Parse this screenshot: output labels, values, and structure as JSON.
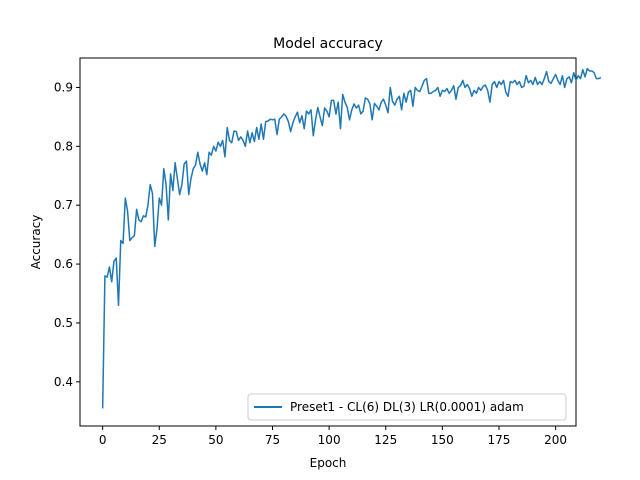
{
  "chart_data": {
    "type": "line",
    "title": "Model accuracy",
    "xlabel": "Epoch",
    "ylabel": "Accuracy",
    "xlim": [
      -10,
      209
    ],
    "ylim": [
      0.325,
      0.95
    ],
    "xticks": [
      0,
      25,
      50,
      75,
      100,
      125,
      150,
      175,
      200
    ],
    "yticks": [
      0.4,
      0.5,
      0.6,
      0.7,
      0.8,
      0.9
    ],
    "ytick_labels": [
      "0.4",
      "0.5",
      "0.6",
      "0.7",
      "0.8",
      "0.9"
    ],
    "grid": false,
    "legend_position": "lower-right",
    "series": [
      {
        "name": "Preset1 - CL(6) DL(3) LR(0.0001) adam",
        "color": "#1f77b4",
        "values": [
          0.355,
          0.58,
          0.578,
          0.595,
          0.57,
          0.605,
          0.61,
          0.53,
          0.64,
          0.635,
          0.712,
          0.69,
          0.64,
          0.645,
          0.648,
          0.693,
          0.675,
          0.672,
          0.682,
          0.68,
          0.7,
          0.735,
          0.72,
          0.63,
          0.66,
          0.712,
          0.7,
          0.762,
          0.735,
          0.675,
          0.753,
          0.725,
          0.772,
          0.745,
          0.718,
          0.735,
          0.77,
          0.775,
          0.718,
          0.745,
          0.762,
          0.768,
          0.79,
          0.77,
          0.758,
          0.772,
          0.752,
          0.79,
          0.785,
          0.8,
          0.792,
          0.807,
          0.8,
          0.81,
          0.782,
          0.832,
          0.81,
          0.806,
          0.826,
          0.825,
          0.81,
          0.816,
          0.81,
          0.8,
          0.826,
          0.806,
          0.823,
          0.808,
          0.832,
          0.812,
          0.838,
          0.812,
          0.842,
          0.843,
          0.846,
          0.845,
          0.846,
          0.82,
          0.846,
          0.85,
          0.855,
          0.851,
          0.842,
          0.825,
          0.84,
          0.85,
          0.858,
          0.84,
          0.852,
          0.83,
          0.86,
          0.855,
          0.862,
          0.818,
          0.845,
          0.866,
          0.85,
          0.835,
          0.865,
          0.86,
          0.85,
          0.878,
          0.878,
          0.855,
          0.875,
          0.83,
          0.888,
          0.875,
          0.866,
          0.845,
          0.862,
          0.872,
          0.865,
          0.87,
          0.855,
          0.86,
          0.882,
          0.88,
          0.872,
          0.845,
          0.873,
          0.868,
          0.862,
          0.875,
          0.88,
          0.87,
          0.857,
          0.9,
          0.876,
          0.87,
          0.88,
          0.885,
          0.862,
          0.89,
          0.875,
          0.892,
          0.895,
          0.868,
          0.9,
          0.895,
          0.893,
          0.902,
          0.912,
          0.915,
          0.89,
          0.89,
          0.893,
          0.895,
          0.9,
          0.885,
          0.895,
          0.893,
          0.898,
          0.89,
          0.895,
          0.903,
          0.88,
          0.9,
          0.903,
          0.912,
          0.9,
          0.905,
          0.898,
          0.885,
          0.895,
          0.89,
          0.9,
          0.895,
          0.902,
          0.904,
          0.895,
          0.875,
          0.905,
          0.91,
          0.9,
          0.91,
          0.905,
          0.912,
          0.892,
          0.885,
          0.91,
          0.908,
          0.912,
          0.905,
          0.91,
          0.9,
          0.902,
          0.92,
          0.908,
          0.912,
          0.905,
          0.917,
          0.905,
          0.91,
          0.905,
          0.915,
          0.927,
          0.91,
          0.907,
          0.915,
          0.922,
          0.912,
          0.905,
          0.92,
          0.9,
          0.915,
          0.918,
          0.908,
          0.925,
          0.912,
          0.92,
          0.915,
          0.93,
          0.918,
          0.932,
          0.928,
          0.928,
          0.925,
          0.915,
          0.915,
          0.917
        ]
      }
    ]
  }
}
